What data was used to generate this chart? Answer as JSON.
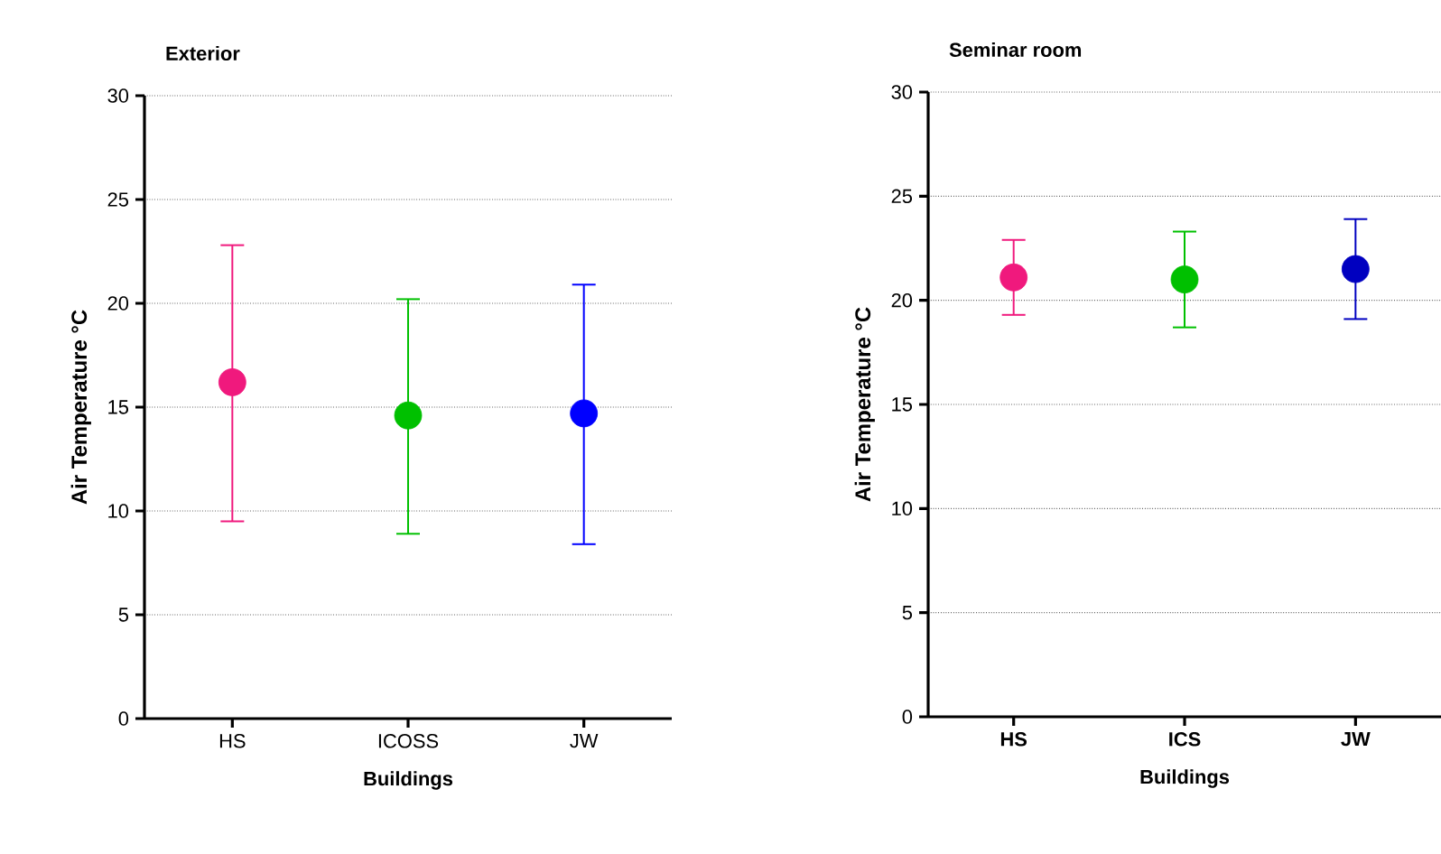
{
  "chart_data": [
    {
      "type": "scatter",
      "title": "Exterior",
      "xlabel": "Buildings",
      "ylabel": "Air Temperature °C",
      "categories": [
        "HS",
        "ICOSS",
        "JW"
      ],
      "values": [
        16.2,
        14.6,
        14.7
      ],
      "colors": [
        "#f0197d",
        "#00c000",
        "#0000ff"
      ],
      "errors": [
        [
          9.5,
          22.8
        ],
        [
          8.9,
          20.2
        ],
        [
          8.4,
          20.9
        ]
      ],
      "ylim": [
        0,
        30
      ],
      "yticks": [
        0,
        5,
        10,
        15,
        20,
        25,
        30
      ],
      "grid": "y",
      "marker": "circle"
    },
    {
      "type": "scatter",
      "title": "Seminar room",
      "xlabel": "Buildings",
      "ylabel": "Air Temperature °C",
      "categories": [
        "HS",
        "ICS",
        "JW"
      ],
      "values": [
        21.1,
        21.0,
        21.5
      ],
      "colors": [
        "#f0197d",
        "#00c000",
        "#0000c0"
      ],
      "errors": [
        [
          19.3,
          22.9
        ],
        [
          18.7,
          23.3
        ],
        [
          19.1,
          23.9
        ]
      ],
      "ylim": [
        0,
        30
      ],
      "yticks": [
        0,
        5,
        10,
        15,
        20,
        25,
        30
      ],
      "grid": "y",
      "marker": "circle"
    }
  ]
}
